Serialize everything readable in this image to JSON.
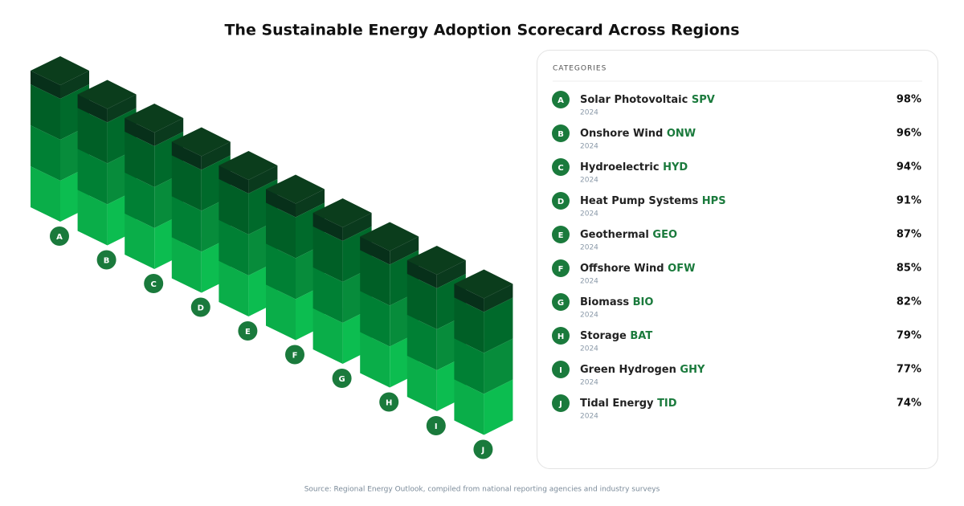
{
  "header": {
    "title": "The Sustainable Energy Adoption Scorecard Across Regions"
  },
  "panel": {
    "heading": "CATEGORIES"
  },
  "items": [
    {
      "badge": "A",
      "name": "Solar Photovoltaic",
      "code": "SPV",
      "note": "2024",
      "value": "98%"
    },
    {
      "badge": "B",
      "name": "Onshore Wind",
      "code": "ONW",
      "note": "2024",
      "value": "96%"
    },
    {
      "badge": "C",
      "name": "Hydroelectric",
      "code": "HYD",
      "note": "2024",
      "value": "94%"
    },
    {
      "badge": "D",
      "name": "Heat Pump Systems",
      "code": "HPS",
      "note": "2024",
      "value": "91%"
    },
    {
      "badge": "E",
      "name": "Geothermal",
      "code": "GEO",
      "note": "2024",
      "value": "87%"
    },
    {
      "badge": "F",
      "name": "Offshore Wind",
      "code": "OFW",
      "note": "2024",
      "value": "85%"
    },
    {
      "badge": "G",
      "name": "Biomass",
      "code": "BIO",
      "note": "2024",
      "value": "82%"
    },
    {
      "badge": "H",
      "name": "Storage",
      "code": "BAT",
      "note": "2024",
      "value": "79%"
    },
    {
      "badge": "I",
      "name": "Green Hydrogen",
      "code": "GHY",
      "note": "2024",
      "value": "77%"
    },
    {
      "badge": "J",
      "name": "Tidal Energy",
      "code": "TID",
      "note": "2024",
      "value": "74%"
    }
  ],
  "footer": {
    "text": "Source: Regional Energy Outlook, compiled from national reporting agencies and industry surveys"
  }
}
